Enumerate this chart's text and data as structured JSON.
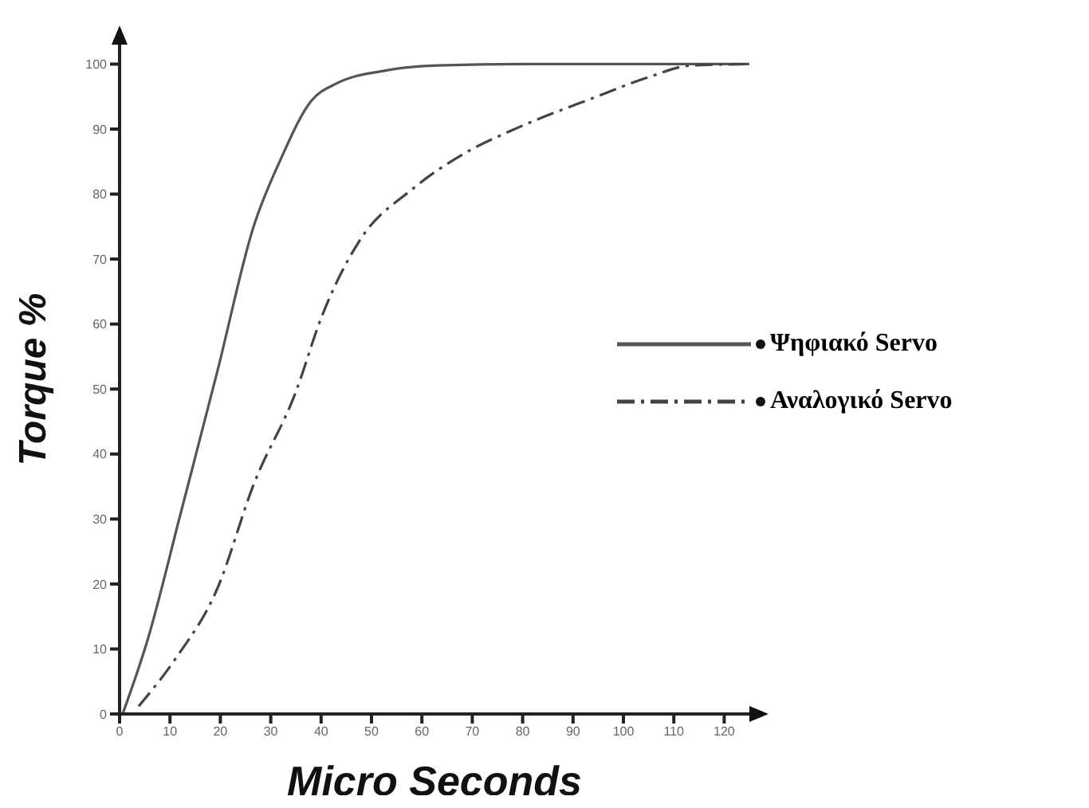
{
  "chart_data": {
    "type": "line",
    "xlabel": "Micro Seconds",
    "ylabel": "Torque %",
    "xlim": [
      0,
      125
    ],
    "xticks": [
      0,
      10,
      20,
      30,
      40,
      50,
      60,
      70,
      80,
      90,
      100,
      110,
      120
    ],
    "ylim": [
      0,
      103
    ],
    "yticks": [
      0,
      10,
      20,
      30,
      40,
      50,
      60,
      70,
      80,
      90,
      100
    ],
    "grid": false,
    "legend": "right",
    "marker": "none",
    "series": [
      {
        "name": "Ψηφιακό Servo",
        "color": "#555555",
        "line_style": "solid",
        "x": [
          0.6,
          5.6,
          12,
          19.4,
          26.6,
          32,
          38,
          43,
          52.7,
          63,
          80,
          100,
          125
        ],
        "values": [
          0,
          11.5,
          30.5,
          52.7,
          75,
          85.4,
          94.3,
          97,
          99,
          99.8,
          100,
          100,
          100
        ]
      },
      {
        "name": "Αναλογικό Servo",
        "color": "#444444",
        "line_style": "dashed",
        "x": [
          3.8,
          11,
          19.4,
          26.6,
          35,
          40,
          47.6,
          58,
          68.3,
          79,
          94.7,
          105,
          113.5,
          125
        ],
        "values": [
          1.2,
          8.4,
          19.3,
          35.3,
          49.6,
          60.9,
          72.8,
          80.7,
          86.2,
          90.2,
          95,
          98,
          99.8,
          100
        ]
      }
    ]
  }
}
